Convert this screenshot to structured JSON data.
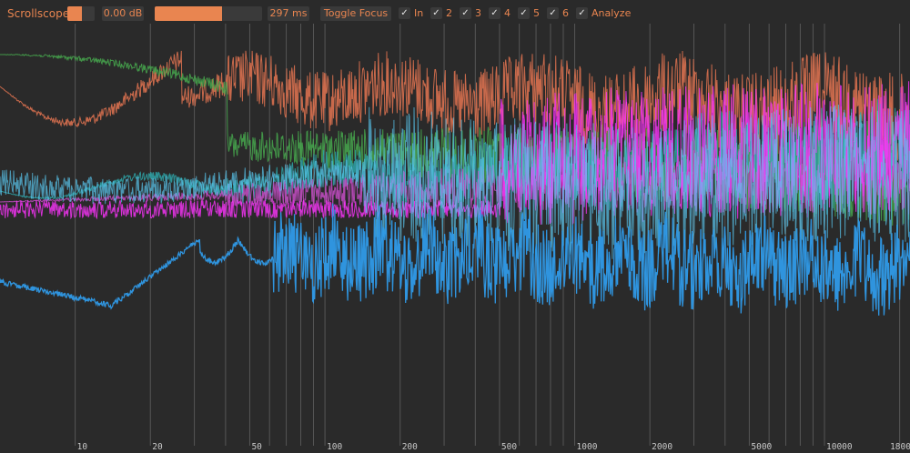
{
  "toolbar": {
    "title": "Scrollscope",
    "gain_label": "0.00 dB",
    "time_label": "297 ms",
    "toggle_focus_label": "Toggle Focus",
    "check_mark": "✓",
    "channels": [
      {
        "label": "In",
        "checked": true
      },
      {
        "label": "2",
        "checked": true
      },
      {
        "label": "3",
        "checked": true
      },
      {
        "label": "4",
        "checked": true
      },
      {
        "label": "5",
        "checked": true
      },
      {
        "label": "6",
        "checked": true
      }
    ],
    "analyze_label": "Analyze",
    "time_slider_fraction": 0.63
  },
  "chart_data": {
    "type": "line",
    "x_scale": "log",
    "xlim": [
      5,
      22000
    ],
    "grid": true,
    "tick_labels": [
      "10",
      "20",
      "50",
      "100",
      "200",
      "500",
      "1000",
      "2000",
      "5000",
      "10000",
      "18000"
    ],
    "tick_values": [
      10,
      20,
      50,
      100,
      200,
      500,
      1000,
      2000,
      5000,
      10000,
      18000
    ],
    "series_colors": [
      "#2f9ae8",
      "#47a84e",
      "#d9704f",
      "#2ea5a8",
      "#c54cc5",
      "#ff33ff",
      "#5ac8f0"
    ]
  },
  "colors": {
    "background": "#2a2a2a",
    "accent": "#e98550",
    "grid": "#7a7a7a"
  }
}
